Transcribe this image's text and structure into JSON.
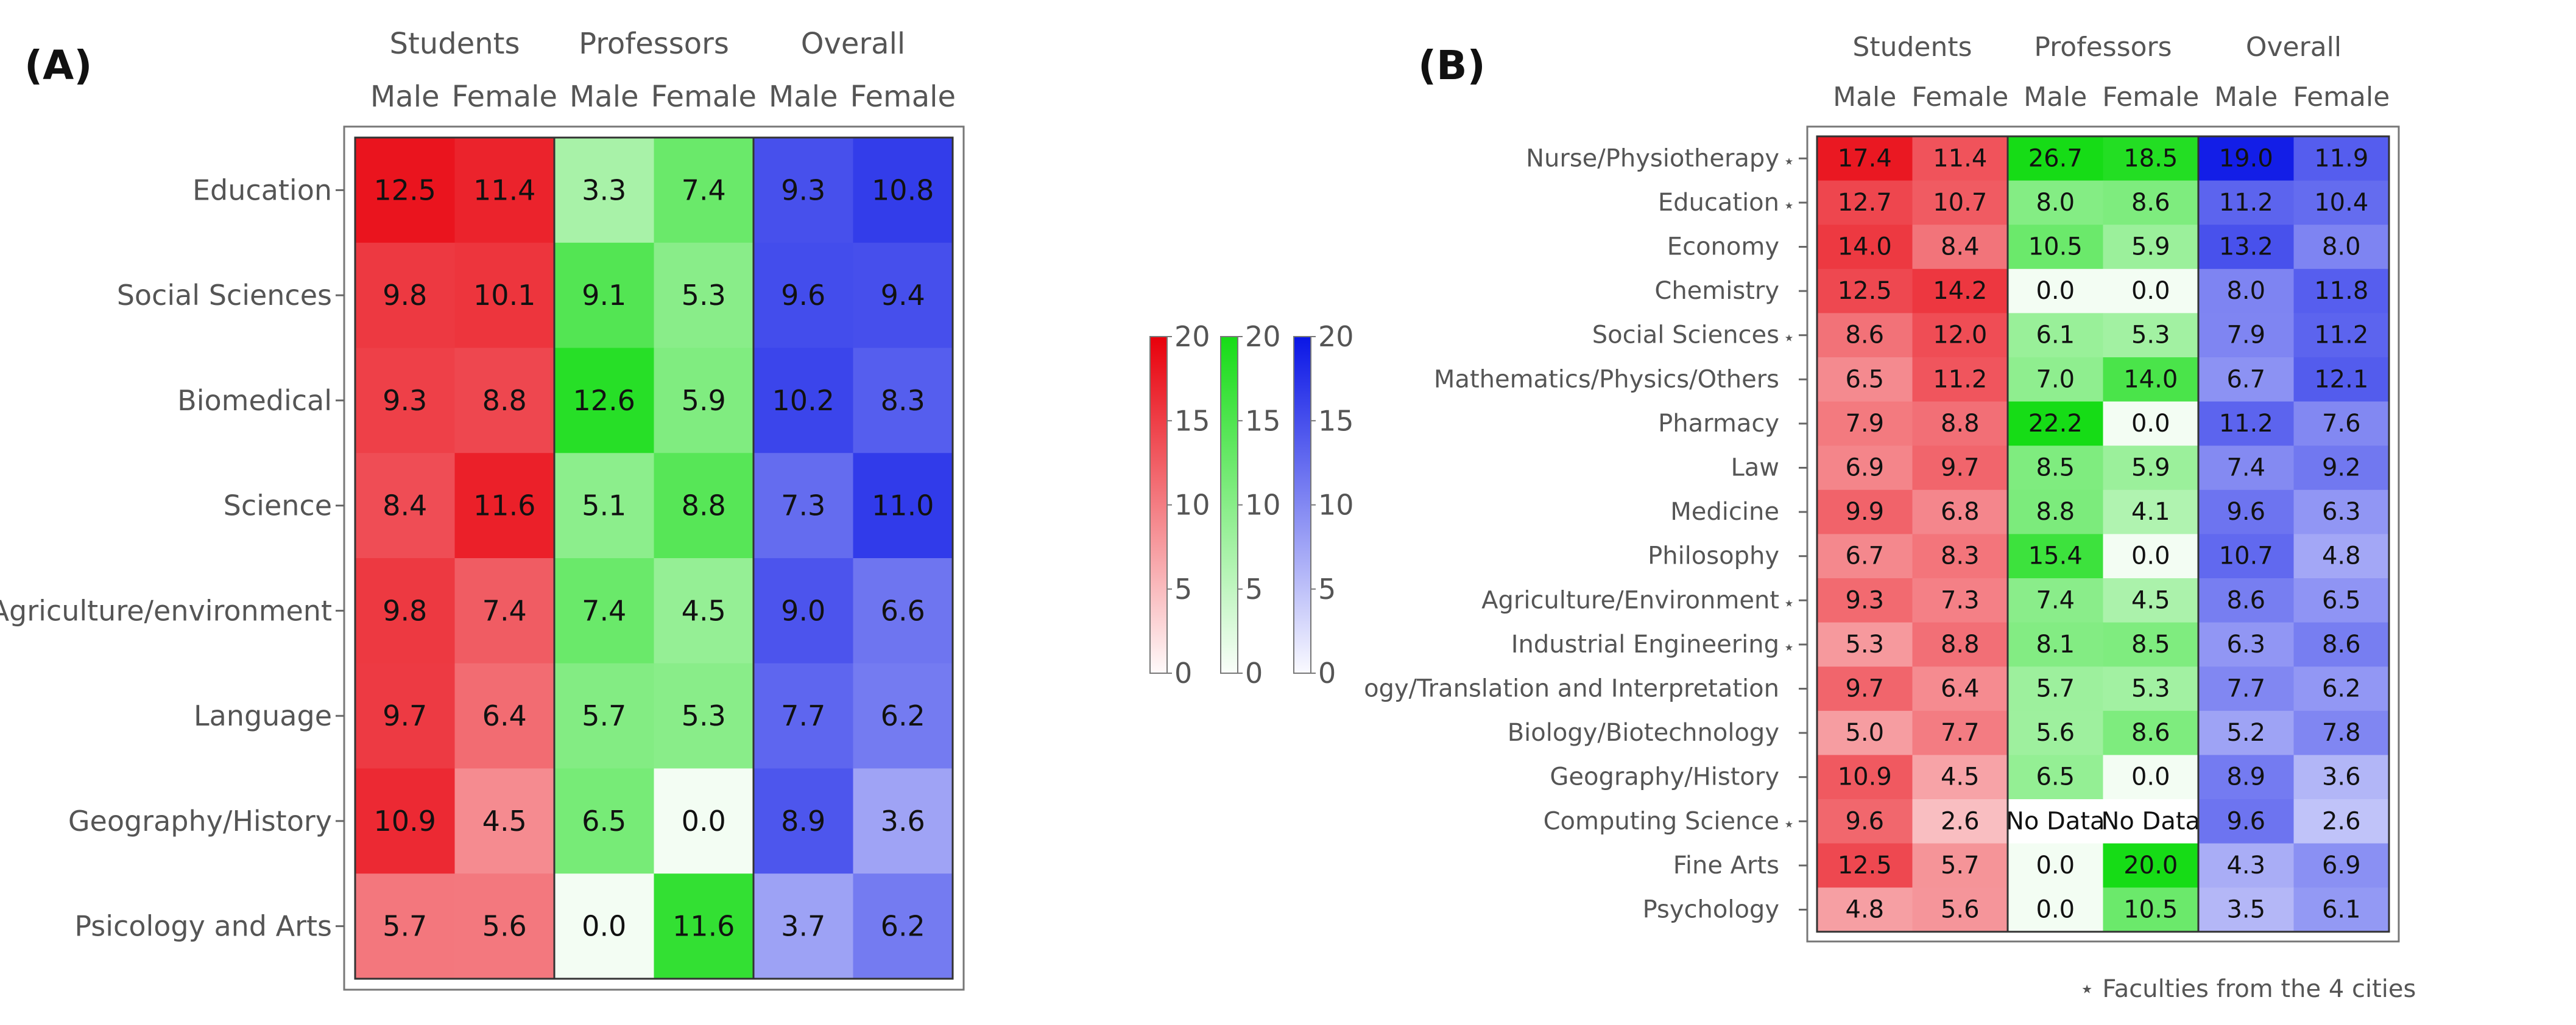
{
  "chart_data": [
    {
      "type": "heatmap",
      "panel_label": "(A)",
      "group_labels": [
        "Students",
        "Professors",
        "Overall"
      ],
      "column_labels": [
        "Male",
        "Female",
        "Male",
        "Female",
        "Male",
        "Female"
      ],
      "group_colors": [
        "#e8000b",
        "#16dc16",
        "#0a16e6"
      ],
      "rows": [
        {
          "label": "Education",
          "values": [
            "12.5",
            "11.4",
            "3.3",
            "7.4",
            "9.3",
            "10.8"
          ]
        },
        {
          "label": "Social Sciences",
          "values": [
            "9.8",
            "10.1",
            "9.1",
            "5.3",
            "9.6",
            "9.4"
          ]
        },
        {
          "label": "Biomedical",
          "values": [
            "9.3",
            "8.8",
            "12.6",
            "5.9",
            "10.2",
            "8.3"
          ]
        },
        {
          "label": "Science",
          "values": [
            "8.4",
            "11.6",
            "5.1",
            "8.8",
            "7.3",
            "11.0"
          ]
        },
        {
          "label": "Agriculture/environment",
          "values": [
            "9.8",
            "7.4",
            "7.4",
            "4.5",
            "9.0",
            "6.6"
          ]
        },
        {
          "label": "Language",
          "values": [
            "9.7",
            "6.4",
            "5.7",
            "5.3",
            "7.7",
            "6.2"
          ]
        },
        {
          "label": "Geography/History",
          "values": [
            "10.9",
            "4.5",
            "6.5",
            "0.0",
            "8.9",
            "3.6"
          ]
        },
        {
          "label": "Psicology and Arts",
          "values": [
            "5.7",
            "5.6",
            "0.0",
            "11.6",
            "3.7",
            "6.2"
          ]
        }
      ],
      "color_scale": {
        "range": [
          0,
          20
        ],
        "ticks": [
          "0",
          "5",
          "10",
          "15",
          "20"
        ],
        "colors": [
          "#e8000b",
          "#16dc16",
          "#0a16e6"
        ]
      }
    },
    {
      "type": "heatmap",
      "panel_label": "(B)",
      "group_labels": [
        "Students",
        "Professors",
        "Overall"
      ],
      "column_labels": [
        "Male",
        "Female",
        "Male",
        "Female",
        "Male",
        "Female"
      ],
      "group_colors": [
        "#e8000b",
        "#16dc16",
        "#0a16e6"
      ],
      "rows": [
        {
          "label": "Nurse/Physiotherapy",
          "star": true,
          "values": [
            "17.4",
            "11.4",
            "26.7",
            "18.5",
            "19.0",
            "11.9"
          ]
        },
        {
          "label": "Education",
          "star": true,
          "values": [
            "12.7",
            "10.7",
            "8.0",
            "8.6",
            "11.2",
            "10.4"
          ]
        },
        {
          "label": "Economy",
          "star": false,
          "values": [
            "14.0",
            "8.4",
            "10.5",
            "5.9",
            "13.2",
            "8.0"
          ]
        },
        {
          "label": "Chemistry",
          "star": false,
          "values": [
            "12.5",
            "14.2",
            "0.0",
            "0.0",
            "8.0",
            "11.8"
          ]
        },
        {
          "label": "Social Sciences",
          "star": true,
          "values": [
            "8.6",
            "12.0",
            "6.1",
            "5.3",
            "7.9",
            "11.2"
          ]
        },
        {
          "label": "Mathematics/Physics/Others",
          "star": false,
          "values": [
            "6.5",
            "11.2",
            "7.0",
            "14.0",
            "6.7",
            "12.1"
          ]
        },
        {
          "label": "Pharmacy",
          "star": false,
          "values": [
            "7.9",
            "8.8",
            "22.2",
            "0.0",
            "11.2",
            "7.6"
          ]
        },
        {
          "label": "Law",
          "star": false,
          "values": [
            "6.9",
            "9.7",
            "8.5",
            "5.9",
            "7.4",
            "9.2"
          ]
        },
        {
          "label": "Medicine",
          "star": false,
          "values": [
            "9.9",
            "6.8",
            "8.8",
            "4.1",
            "9.6",
            "6.3"
          ]
        },
        {
          "label": "Philosophy",
          "star": false,
          "values": [
            "6.7",
            "8.3",
            "15.4",
            "0.0",
            "10.7",
            "4.8"
          ]
        },
        {
          "label": "Agriculture/Environment",
          "star": true,
          "values": [
            "9.3",
            "7.3",
            "7.4",
            "4.5",
            "8.6",
            "6.5"
          ]
        },
        {
          "label": "Industrial Engineering",
          "star": true,
          "values": [
            "5.3",
            "8.8",
            "8.1",
            "8.5",
            "6.3",
            "8.6"
          ]
        },
        {
          "label": "ogy/Translation and Interpretation",
          "star": false,
          "values": [
            "9.7",
            "6.4",
            "5.7",
            "5.3",
            "7.7",
            "6.2"
          ]
        },
        {
          "label": "Biology/Biotechnology",
          "star": false,
          "values": [
            "5.0",
            "7.7",
            "5.6",
            "8.6",
            "5.2",
            "7.8"
          ]
        },
        {
          "label": "Geography/History",
          "star": false,
          "values": [
            "10.9",
            "4.5",
            "6.5",
            "0.0",
            "8.9",
            "3.6"
          ]
        },
        {
          "label": "Computing Science",
          "star": true,
          "values": [
            "9.6",
            "2.6",
            "No Data",
            "No Data",
            "9.6",
            "2.6"
          ]
        },
        {
          "label": "Fine Arts",
          "star": false,
          "values": [
            "12.5",
            "5.7",
            "0.0",
            "20.0",
            "4.3",
            "6.9"
          ]
        },
        {
          "label": "Psychology",
          "star": false,
          "values": [
            "4.8",
            "5.6",
            "0.0",
            "10.5",
            "3.5",
            "6.1"
          ]
        }
      ],
      "footnote": "Faculties from the 4 cities",
      "star_symbol": "⋆"
    }
  ]
}
